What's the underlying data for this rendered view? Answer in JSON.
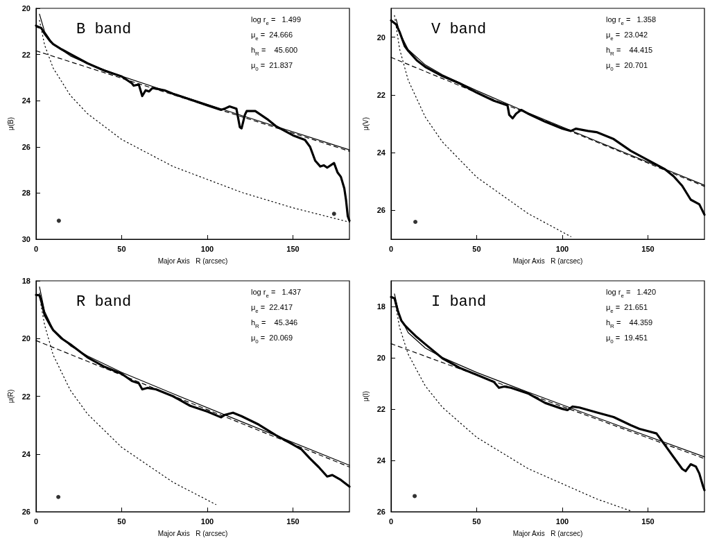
{
  "chart_data": [
    {
      "type": "line",
      "title": "B band",
      "xlabel": "Major Axis   R (arcsec)",
      "ylabel": "μ(B)",
      "annotations": [
        "log r$_{e}$ =   1.499",
        "μ$_{e}$ =  24.666",
        "h$_{R}$ =    45.600",
        "μ$_{0}$ =  21.837"
      ],
      "xlim": [
        0,
        183
      ],
      "xticks": [
        0,
        50,
        100,
        150
      ],
      "ylim": [
        30,
        20
      ],
      "yticks": [
        20,
        22,
        24,
        26,
        28,
        30
      ],
      "series": [
        {
          "marker": "none",
          "color": "#000000",
          "x": [
            0,
            1,
            3,
            5,
            8,
            10,
            15,
            20,
            30,
            40,
            50,
            56,
            57,
            60,
            62,
            64,
            66,
            68,
            75,
            80,
            90,
            100,
            108,
            110,
            113,
            117,
            119,
            120,
            121,
            122,
            123,
            128,
            135,
            140,
            150,
            157,
            160,
            163,
            166,
            168,
            170,
            174,
            176,
            178,
            180,
            181,
            182,
            183
          ],
          "values": [
            20.75,
            20.8,
            20.85,
            21.1,
            21.4,
            21.55,
            21.78,
            21.98,
            22.38,
            22.7,
            22.95,
            23.25,
            23.35,
            23.3,
            23.8,
            23.55,
            23.6,
            23.45,
            23.55,
            23.7,
            23.95,
            24.2,
            24.4,
            24.35,
            24.25,
            24.35,
            25.15,
            25.2,
            24.9,
            24.6,
            24.45,
            24.45,
            24.8,
            25.1,
            25.5,
            25.7,
            26.0,
            26.6,
            26.85,
            26.8,
            26.9,
            26.7,
            27.1,
            27.3,
            27.8,
            28.3,
            29.0,
            29.2
          ]
        },
        {
          "marker": "none",
          "line_style": "solid",
          "color": "#000000",
          "x": [
            2,
            5,
            10,
            20,
            30,
            50,
            80,
            120,
            183
          ],
          "values": [
            20.25,
            21.01,
            21.55,
            22.06,
            22.39,
            22.94,
            23.68,
            24.64,
            26.13
          ]
        },
        {
          "marker": "none",
          "line_style": "dashed",
          "color": "#000000",
          "x": [
            0,
            183
          ],
          "values": [
            21.84,
            26.19
          ]
        },
        {
          "marker": "none",
          "line_style": "dotted",
          "color": "#000000",
          "x": [
            2,
            5,
            10,
            20,
            30,
            50,
            80,
            120,
            150,
            183
          ],
          "values": [
            20.52,
            21.59,
            22.59,
            23.77,
            24.56,
            25.68,
            26.85,
            27.97,
            28.64,
            29.26
          ]
        },
        {
          "type": "scatter",
          "marker": "circle",
          "color": "#000000",
          "x": [
            13.3,
            174
          ],
          "values": [
            29.2,
            28.9
          ]
        }
      ]
    },
    {
      "type": "line",
      "title": "V band",
      "xlabel": "Major Axis   R (arcsec)",
      "ylabel": "μ(V)",
      "annotations": [
        "log r$_{e}$ =   1.358",
        "μ$_{e}$ =  23.042",
        "h$_{R}$ =    44.415",
        "μ$_{0}$ =  20.701"
      ],
      "xlim": [
        0,
        183
      ],
      "xticks": [
        0,
        50,
        100,
        150
      ],
      "ylim": [
        27,
        19
      ],
      "yticks": [
        20,
        22,
        24,
        26
      ],
      "series": [
        {
          "marker": "none",
          "color": "#000000",
          "x": [
            0,
            3,
            5,
            8,
            10,
            15,
            20,
            30,
            40,
            50,
            60,
            68,
            69,
            71,
            73,
            76,
            80,
            90,
            100,
            105,
            108,
            115,
            120,
            130,
            140,
            150,
            160,
            165,
            170,
            175,
            180,
            183
          ],
          "values": [
            19.42,
            19.56,
            19.82,
            20.31,
            20.47,
            20.8,
            21.03,
            21.35,
            21.6,
            21.92,
            22.2,
            22.36,
            22.69,
            22.81,
            22.65,
            22.52,
            22.65,
            22.93,
            23.17,
            23.25,
            23.17,
            23.25,
            23.29,
            23.53,
            23.94,
            24.26,
            24.58,
            24.82,
            25.15,
            25.63,
            25.79,
            26.15
          ]
        },
        {
          "marker": "none",
          "line_style": "solid",
          "color": "#000000",
          "x": [
            3,
            5,
            10,
            20,
            30,
            50,
            80,
            120,
            183
          ],
          "values": [
            19.38,
            19.84,
            20.43,
            20.96,
            21.3,
            21.85,
            22.62,
            23.6,
            25.13
          ]
        },
        {
          "marker": "none",
          "line_style": "dashed",
          "color": "#000000",
          "x": [
            0,
            183
          ],
          "values": [
            20.7,
            25.17
          ]
        },
        {
          "marker": "none",
          "line_style": "dotted",
          "color": "#000000",
          "x": [
            2,
            5,
            10,
            20,
            30,
            50,
            80,
            105
          ],
          "values": [
            19.25,
            20.41,
            21.49,
            22.77,
            23.63,
            24.85,
            26.11,
            26.91
          ]
        },
        {
          "type": "scatter",
          "marker": "circle",
          "color": "#000000",
          "x": [
            14.2
          ],
          "values": [
            26.4
          ]
        }
      ]
    },
    {
      "type": "line",
      "title": "R band",
      "xlabel": "Major Axis   R (arcsec)",
      "ylabel": "μ(R)",
      "annotations": [
        "log r$_{e}$ =   1.437",
        "μ$_{e}$ =  22.417",
        "h$_{R}$ =    45.346",
        "μ$_{0}$ =  20.069"
      ],
      "xlim": [
        0,
        183
      ],
      "xticks": [
        0,
        50,
        100,
        150
      ],
      "ylim": [
        26,
        18
      ],
      "yticks": [
        18,
        20,
        22,
        24,
        26
      ],
      "series": [
        {
          "marker": "none",
          "color": "#000000",
          "x": [
            0,
            2,
            3,
            5,
            8,
            10,
            15,
            20,
            30,
            40,
            50,
            56,
            60,
            62,
            65,
            70,
            80,
            90,
            100,
            108,
            110,
            115,
            120,
            130,
            140,
            150,
            155,
            160,
            165,
            170,
            173,
            178,
            183
          ],
          "values": [
            18.49,
            18.5,
            18.69,
            19.18,
            19.51,
            19.71,
            20.0,
            20.2,
            20.65,
            20.98,
            21.22,
            21.47,
            21.55,
            21.76,
            21.71,
            21.76,
            22.0,
            22.33,
            22.53,
            22.73,
            22.65,
            22.57,
            22.69,
            22.98,
            23.35,
            23.67,
            23.84,
            24.16,
            24.45,
            24.78,
            24.73,
            24.9,
            25.13
          ]
        },
        {
          "marker": "none",
          "line_style": "solid",
          "color": "#000000",
          "x": [
            2,
            5,
            10,
            20,
            30,
            50,
            80,
            120,
            183
          ],
          "values": [
            18.21,
            19.06,
            19.68,
            20.25,
            20.6,
            21.17,
            21.91,
            22.88,
            24.39
          ]
        },
        {
          "marker": "none",
          "line_style": "dashed",
          "color": "#000000",
          "x": [
            0,
            183
          ],
          "values": [
            20.07,
            24.45
          ]
        },
        {
          "marker": "none",
          "line_style": "dotted",
          "color": "#000000",
          "x": [
            2,
            3,
            5,
            10,
            20,
            30,
            50,
            80,
            105
          ],
          "values": [
            18.42,
            18.88,
            19.53,
            20.57,
            21.79,
            22.61,
            23.77,
            24.98,
            25.75
          ]
        },
        {
          "type": "scatter",
          "marker": "circle",
          "color": "#000000",
          "x": [
            13
          ],
          "values": [
            25.49
          ]
        }
      ]
    },
    {
      "type": "line",
      "title": "I band",
      "xlabel": "Major Axis   R (arcsec)",
      "ylabel": "μ(I)",
      "annotations": [
        "log r$_{e}$ =   1.420",
        "μ$_{e}$ =  21.651",
        "h$_{R}$ =    44.359",
        "μ$_{0}$ =  19.451"
      ],
      "xlim": [
        0,
        183
      ],
      "xticks": [
        0,
        50,
        100,
        150
      ],
      "ylim": [
        26,
        17
      ],
      "yticks": [
        18,
        20,
        22,
        24,
        26
      ],
      "series": [
        {
          "marker": "none",
          "color": "#000000",
          "x": [
            0,
            2,
            4,
            6,
            8,
            10,
            15,
            20,
            30,
            40,
            50,
            60,
            63,
            66,
            70,
            80,
            90,
            100,
            103,
            106,
            110,
            120,
            130,
            140,
            145,
            150,
            155,
            160,
            165,
            170,
            172,
            175,
            178,
            180,
            182,
            183
          ],
          "values": [
            17.63,
            17.68,
            18.18,
            18.55,
            18.73,
            18.87,
            19.19,
            19.47,
            20.02,
            20.39,
            20.66,
            20.94,
            21.17,
            21.12,
            21.17,
            21.39,
            21.76,
            21.99,
            22.04,
            21.9,
            21.94,
            22.13,
            22.31,
            22.63,
            22.77,
            22.86,
            22.95,
            23.41,
            23.87,
            24.33,
            24.42,
            24.15,
            24.24,
            24.51,
            24.97,
            25.16
          ]
        },
        {
          "marker": "none",
          "line_style": "solid",
          "color": "#000000",
          "x": [
            2,
            5,
            10,
            20,
            30,
            50,
            80,
            120,
            183
          ],
          "values": [
            17.51,
            18.38,
            19.02,
            19.62,
            19.99,
            20.57,
            21.34,
            22.33,
            23.86
          ]
        },
        {
          "marker": "none",
          "line_style": "dashed",
          "color": "#000000",
          "x": [
            0,
            183
          ],
          "values": [
            19.45,
            23.93
          ]
        },
        {
          "marker": "none",
          "line_style": "dotted",
          "color": "#000000",
          "x": [
            2,
            5,
            10,
            20,
            30,
            50,
            80,
            120,
            140
          ],
          "values": [
            17.7,
            18.82,
            19.86,
            21.1,
            21.93,
            23.1,
            24.32,
            25.5,
            25.97
          ]
        },
        {
          "type": "scatter",
          "marker": "circle",
          "color": "#000000",
          "x": [
            13.8
          ],
          "values": [
            25.39
          ]
        }
      ]
    }
  ]
}
